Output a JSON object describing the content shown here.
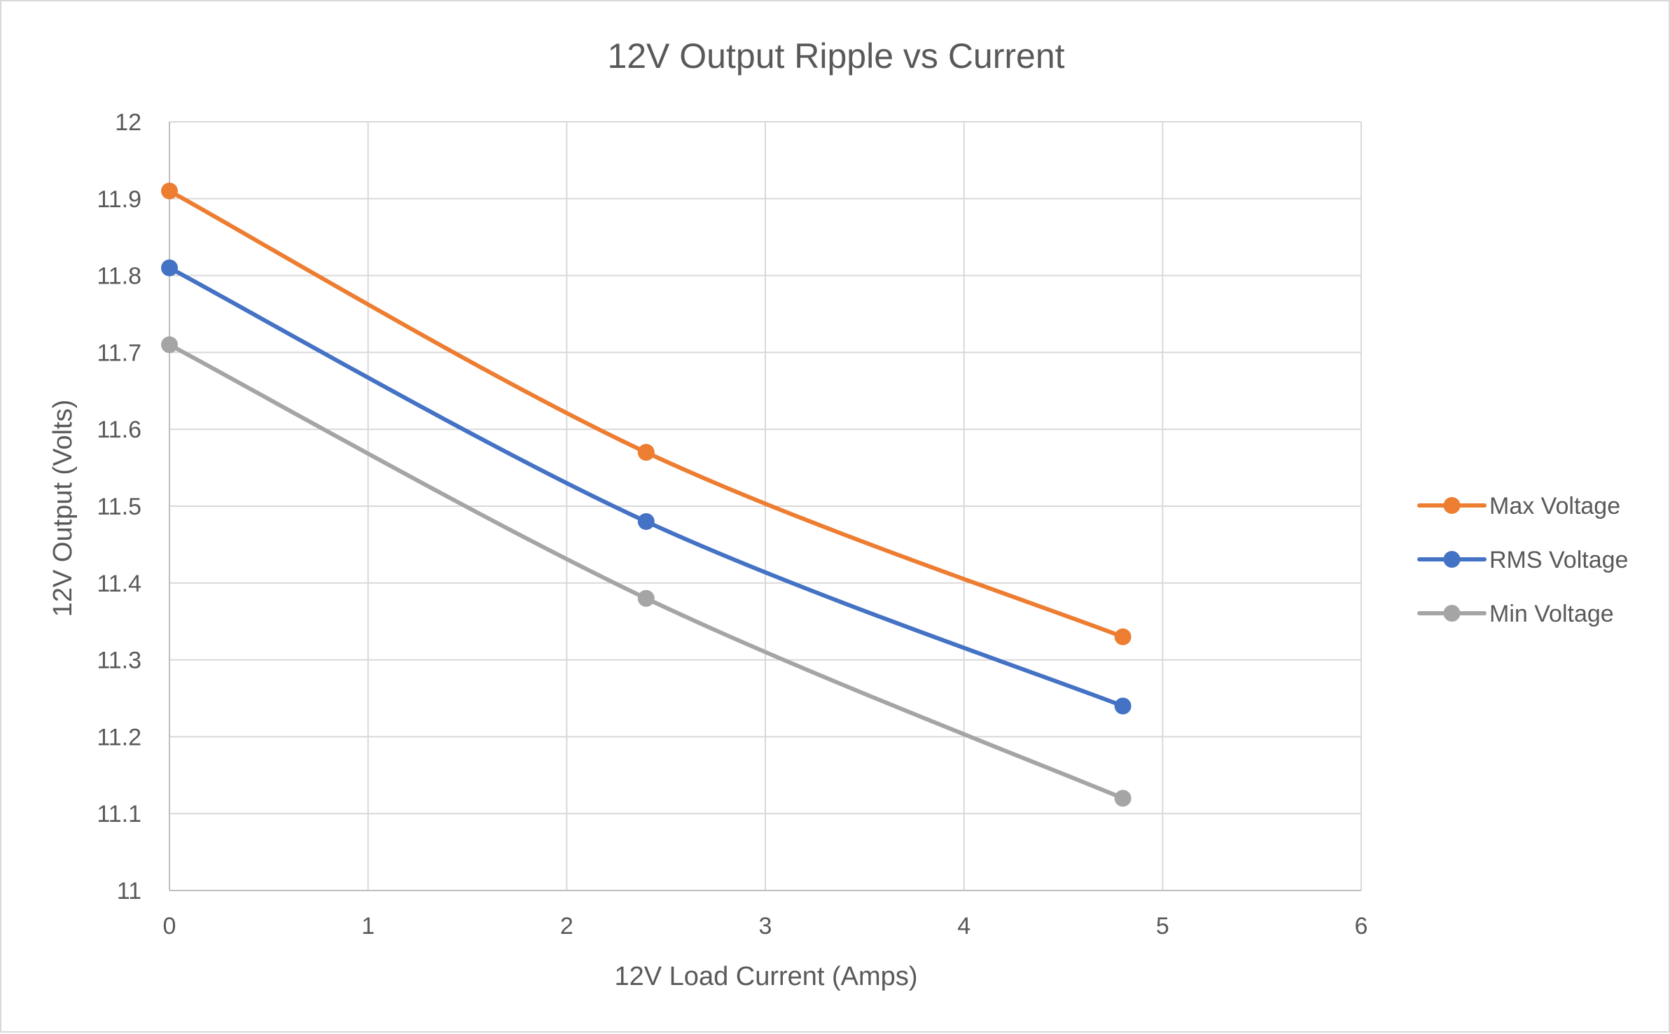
{
  "chart_data": {
    "type": "scatter",
    "title": "12V Output Ripple vs Current",
    "xlabel": "12V Load Current (Amps)",
    "ylabel": "12V Output (Volts)",
    "xlim": [
      0,
      6
    ],
    "ylim": [
      11,
      12
    ],
    "xticks": [
      "0",
      "1",
      "2",
      "3",
      "4",
      "5",
      "6"
    ],
    "yticks": [
      "11",
      "11.1",
      "11.2",
      "11.3",
      "11.4",
      "11.5",
      "11.6",
      "11.7",
      "11.8",
      "11.9",
      "12"
    ],
    "grid": true,
    "legend_position": "right",
    "line_style": "smoothed lines with markers",
    "series": [
      {
        "name": "Max Voltage",
        "color": "#ED7D31",
        "x": [
          0,
          2.4,
          4.8
        ],
        "y": [
          11.91,
          11.57,
          11.33
        ]
      },
      {
        "name": "RMS Voltage",
        "color": "#4472C4",
        "x": [
          0,
          2.4,
          4.8
        ],
        "y": [
          11.81,
          11.48,
          11.24
        ]
      },
      {
        "name": "Min Voltage",
        "color": "#A5A5A5",
        "x": [
          0,
          2.4,
          4.8
        ],
        "y": [
          11.71,
          11.38,
          11.12
        ]
      }
    ]
  }
}
